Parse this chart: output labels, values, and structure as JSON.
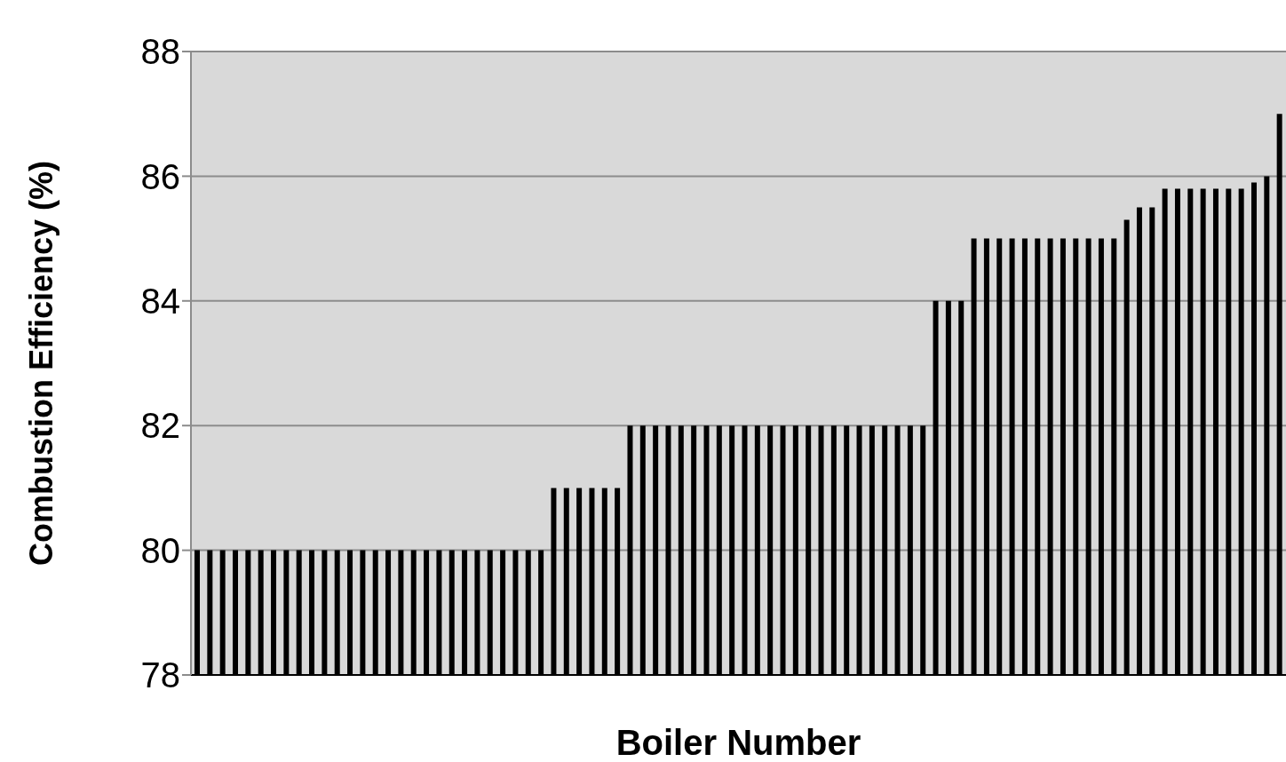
{
  "chart_data": {
    "type": "bar",
    "xlabel": "Boiler Number",
    "ylabel": "Combustion Efficiency (%)",
    "categories": [
      null,
      null,
      null,
      null,
      null,
      null,
      null,
      null,
      null,
      null,
      null,
      null,
      null,
      null,
      null,
      null,
      null,
      null,
      null,
      null,
      null,
      null,
      null,
      null,
      null,
      null,
      null,
      null,
      null,
      null,
      null,
      null,
      null,
      null,
      null,
      null,
      null,
      null,
      null,
      null,
      null,
      null,
      null,
      null,
      null,
      null,
      null,
      null,
      null,
      null,
      null,
      null,
      null,
      null,
      null,
      null,
      null,
      null,
      null,
      null,
      null,
      null,
      null,
      null,
      null,
      null,
      null,
      null,
      null,
      null,
      null,
      null,
      null,
      null,
      null,
      null,
      null,
      null,
      null,
      null,
      null,
      null,
      null,
      null,
      null,
      null
    ],
    "values": [
      80,
      80,
      80,
      80,
      80,
      80,
      80,
      80,
      80,
      80,
      80,
      80,
      80,
      80,
      80,
      80,
      80,
      80,
      80,
      80,
      80,
      80,
      80,
      80,
      80,
      80,
      80,
      80,
      81,
      81,
      81,
      81,
      81,
      81,
      82,
      82,
      82,
      82,
      82,
      82,
      82,
      82,
      82,
      82,
      82,
      82,
      82,
      82,
      82,
      82,
      82,
      82,
      82,
      82,
      82,
      82,
      82,
      82,
      84,
      84,
      84,
      85,
      85,
      85,
      85,
      85,
      85,
      85,
      85,
      85,
      85,
      85,
      85,
      85.3,
      85.5,
      85.5,
      85.8,
      85.8,
      85.8,
      85.8,
      85.8,
      85.8,
      85.8,
      85.9,
      86,
      87
    ],
    "color": "#000000",
    "ylim": [
      78,
      88
    ],
    "yticks": [
      78,
      80,
      82,
      84,
      86,
      88
    ],
    "grid": "y",
    "tick_labels": "y"
  }
}
